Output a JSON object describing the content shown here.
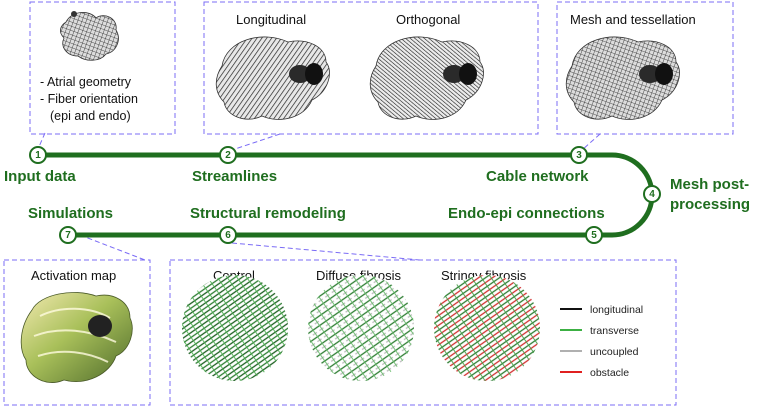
{
  "steps": [
    {
      "num": "1",
      "label": "Input data"
    },
    {
      "num": "2",
      "label": "Streamlines"
    },
    {
      "num": "3",
      "label": "Cable network"
    },
    {
      "num": "4",
      "label_line1": "Mesh post-",
      "label_line2": "processing"
    },
    {
      "num": "5",
      "label": "Endo-epi connections"
    },
    {
      "num": "6",
      "label": "Structural remodeling"
    },
    {
      "num": "7",
      "label": "Simulations"
    }
  ],
  "panels": {
    "input": {
      "lines": [
        "- Atrial geometry",
        "- Fiber orientation",
        "(epi and endo)"
      ]
    },
    "streamlines": {
      "titles": [
        "Longitudinal",
        "Orthogonal"
      ]
    },
    "mesh": {
      "title": "Mesh and tessellation"
    },
    "activation": {
      "title": "Activation map"
    },
    "remodeling": {
      "titles": [
        "Control",
        "Diffuse fibrosis",
        "Stringy fibrosis"
      ]
    }
  },
  "legend": [
    {
      "label": "longitudinal",
      "color": "#111111"
    },
    {
      "label": "transverse",
      "color": "#3cb043"
    },
    {
      "label": "uncoupled",
      "color": "#b0b0b0"
    },
    {
      "label": "obstacle",
      "color": "#e02020"
    }
  ],
  "colors": {
    "accent": "#1f6e1f",
    "dash": "#7b6cf6"
  }
}
